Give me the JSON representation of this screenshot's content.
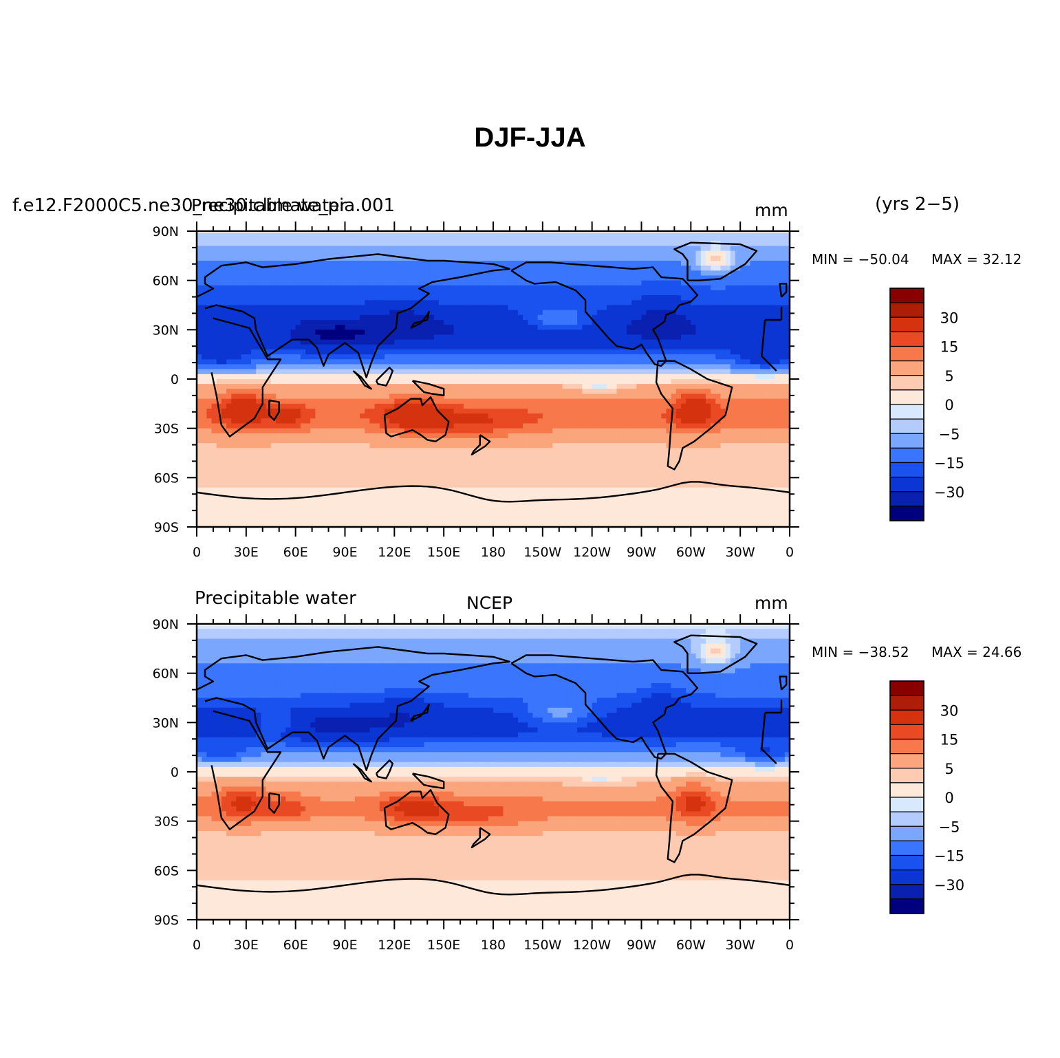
{
  "title": "DJF-JJA",
  "subtitle": "(yrs 2−5)",
  "colors": {
    "palette": [
      "#00007f",
      "#0a20b0",
      "#0b36d4",
      "#1a52f0",
      "#3a75fd",
      "#7aa6fd",
      "#b4cbfe",
      "#d8e8fd",
      "#fde8da",
      "#fdcab2",
      "#fba57c",
      "#f7784a",
      "#e94a24",
      "#d5320f",
      "#ae1d08",
      "#880000"
    ],
    "land_outline": "#000000"
  },
  "colorbar": {
    "tick_labels": [
      "30",
      "15",
      "5",
      "0",
      "−5",
      "−15",
      "−30"
    ]
  },
  "axes": {
    "x_labels": [
      "0",
      "30E",
      "60E",
      "90E",
      "120E",
      "150E",
      "180",
      "150W",
      "120W",
      "90W",
      "60W",
      "30W",
      "0"
    ],
    "y_labels": [
      "90N",
      "60N",
      "30N",
      "0",
      "30S",
      "60S",
      "90S"
    ]
  },
  "panels": [
    {
      "left_title": "f.e12.F2000C5.ne30_ne30.climate_pia.001",
      "center_title": "Precipitable water",
      "units": "mm",
      "min_label": "MIN = −50.04",
      "max_label": "MAX =  32.12"
    },
    {
      "left_title": "Precipitable water",
      "center_title": "NCEP",
      "units": "mm",
      "min_label": "MIN = −38.52",
      "max_label": "MAX =  24.66"
    }
  ],
  "chart_data": {
    "type": "heatmap",
    "title": "DJF-JJA",
    "variable": "Precipitable water",
    "units": "mm",
    "period": "(yrs 2−5)",
    "x_range": [
      0,
      360
    ],
    "y_range": [
      -90,
      90
    ],
    "contour_levels": [
      -30,
      -15,
      -5,
      0,
      5,
      15,
      30
    ],
    "panels": [
      {
        "name": "f.e12.F2000C5.ne30_ne30.climate_pia.001",
        "min": -50.04,
        "max": 32.12
      },
      {
        "name": "NCEP",
        "min": -38.52,
        "max": 24.66
      }
    ]
  }
}
